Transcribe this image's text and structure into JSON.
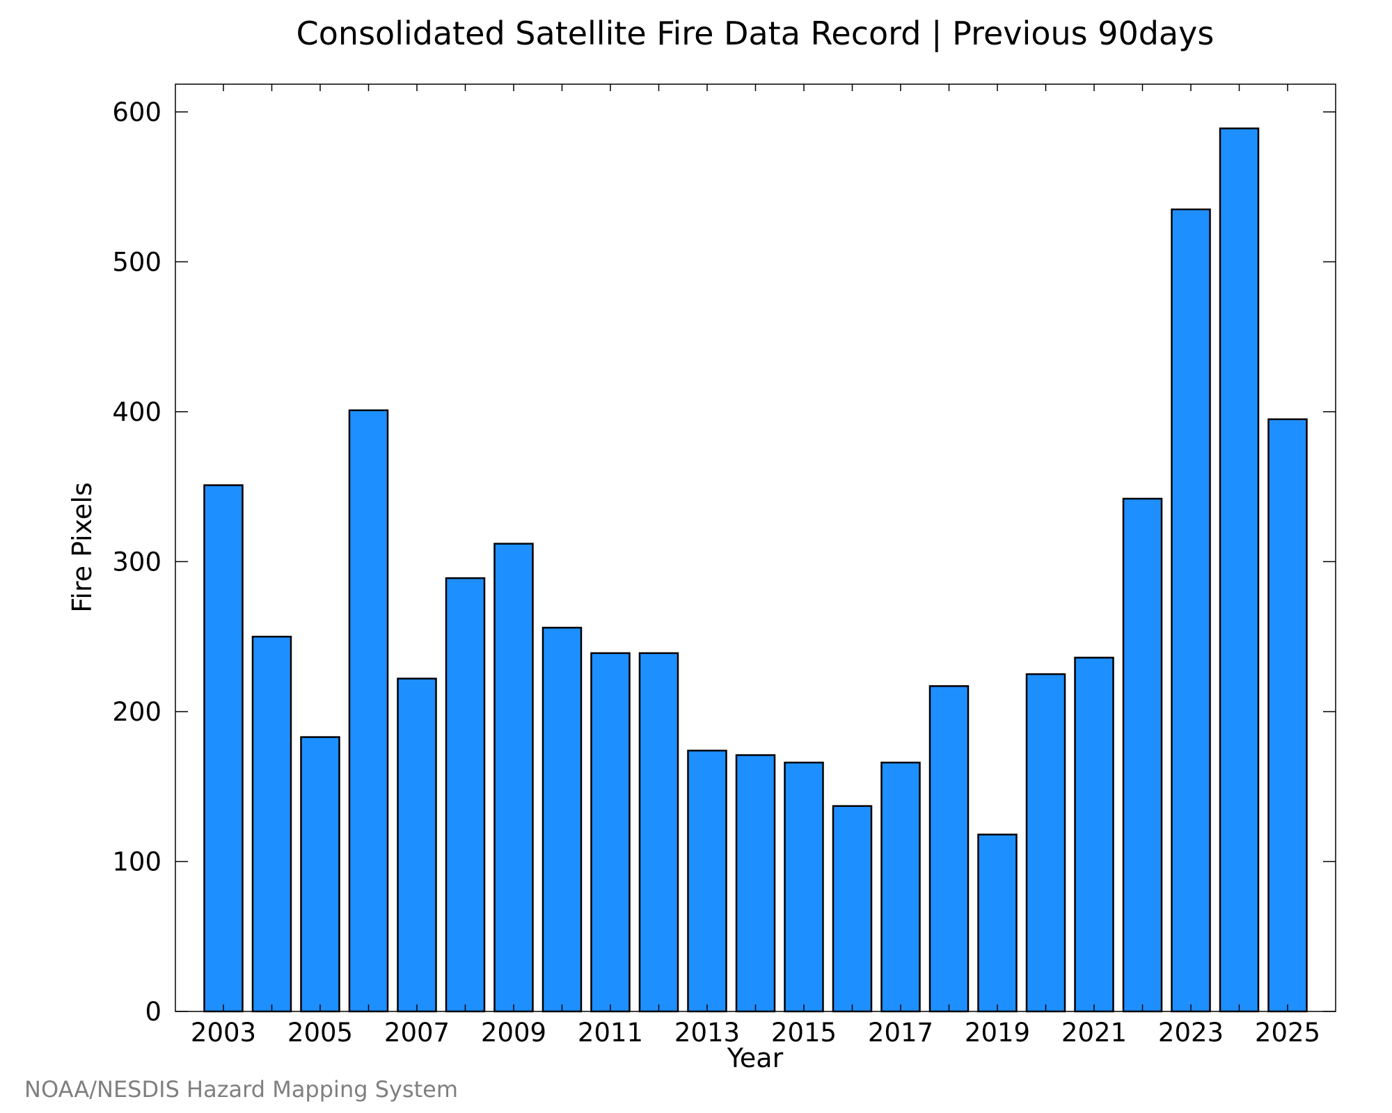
{
  "chart_data": {
    "type": "bar",
    "title": "Consolidated Satellite Fire Data Record | Previous 90days",
    "xlabel": "Year",
    "ylabel": "Fire Pixels",
    "credit": "NOAA/NESDIS Hazard Mapping System",
    "categories": [
      "2003",
      "2004",
      "2005",
      "2006",
      "2007",
      "2008",
      "2009",
      "2010",
      "2011",
      "2012",
      "2013",
      "2014",
      "2015",
      "2016",
      "2017",
      "2018",
      "2019",
      "2020",
      "2021",
      "2022",
      "2023",
      "2024",
      "2025"
    ],
    "values": [
      351,
      250,
      183,
      401,
      222,
      289,
      312,
      256,
      239,
      239,
      174,
      171,
      166,
      137,
      166,
      217,
      118,
      225,
      236,
      342,
      535,
      589,
      395
    ],
    "x_tick_labels": [
      "2003",
      "2005",
      "2007",
      "2009",
      "2011",
      "2013",
      "2015",
      "2017",
      "2019",
      "2021",
      "2023",
      "2025"
    ],
    "y_tick_labels": [
      "0",
      "100",
      "200",
      "300",
      "400",
      "500",
      "600"
    ],
    "ylim": [
      0,
      618.5
    ],
    "bar_color": "#1e8fff",
    "edge_color": "#000000",
    "grid": false,
    "legend": "none"
  }
}
